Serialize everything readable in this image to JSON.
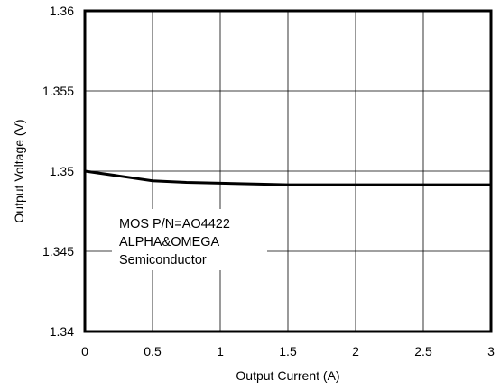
{
  "chart_data": {
    "type": "line",
    "xlabel": "Output Current (A)",
    "ylabel": "Output Voltage (V)",
    "xlim": [
      0,
      3
    ],
    "ylim": [
      1.34,
      1.36
    ],
    "x_ticks": [
      "0",
      "0.5",
      "1",
      "1.5",
      "2",
      "2.5",
      "3"
    ],
    "y_ticks": [
      "1.36",
      "1.355",
      "1.35",
      "1.345",
      "1.34"
    ],
    "grid": true,
    "annotation": [
      "MOS P/N=AO4422",
      "ALPHA&OMEGA",
      "Semiconductor"
    ],
    "series": [
      {
        "x": [
          0,
          0.25,
          0.5,
          0.75,
          1.0,
          1.25,
          1.5,
          1.75,
          2.0,
          2.5,
          3.0
        ],
        "y": [
          1.35,
          1.3497,
          1.3494,
          1.3493,
          1.34925,
          1.3492,
          1.34915,
          1.34915,
          1.34915,
          1.34915,
          1.34915
        ]
      }
    ],
    "colors": {
      "line": "#000000",
      "grid": "#000000"
    }
  }
}
